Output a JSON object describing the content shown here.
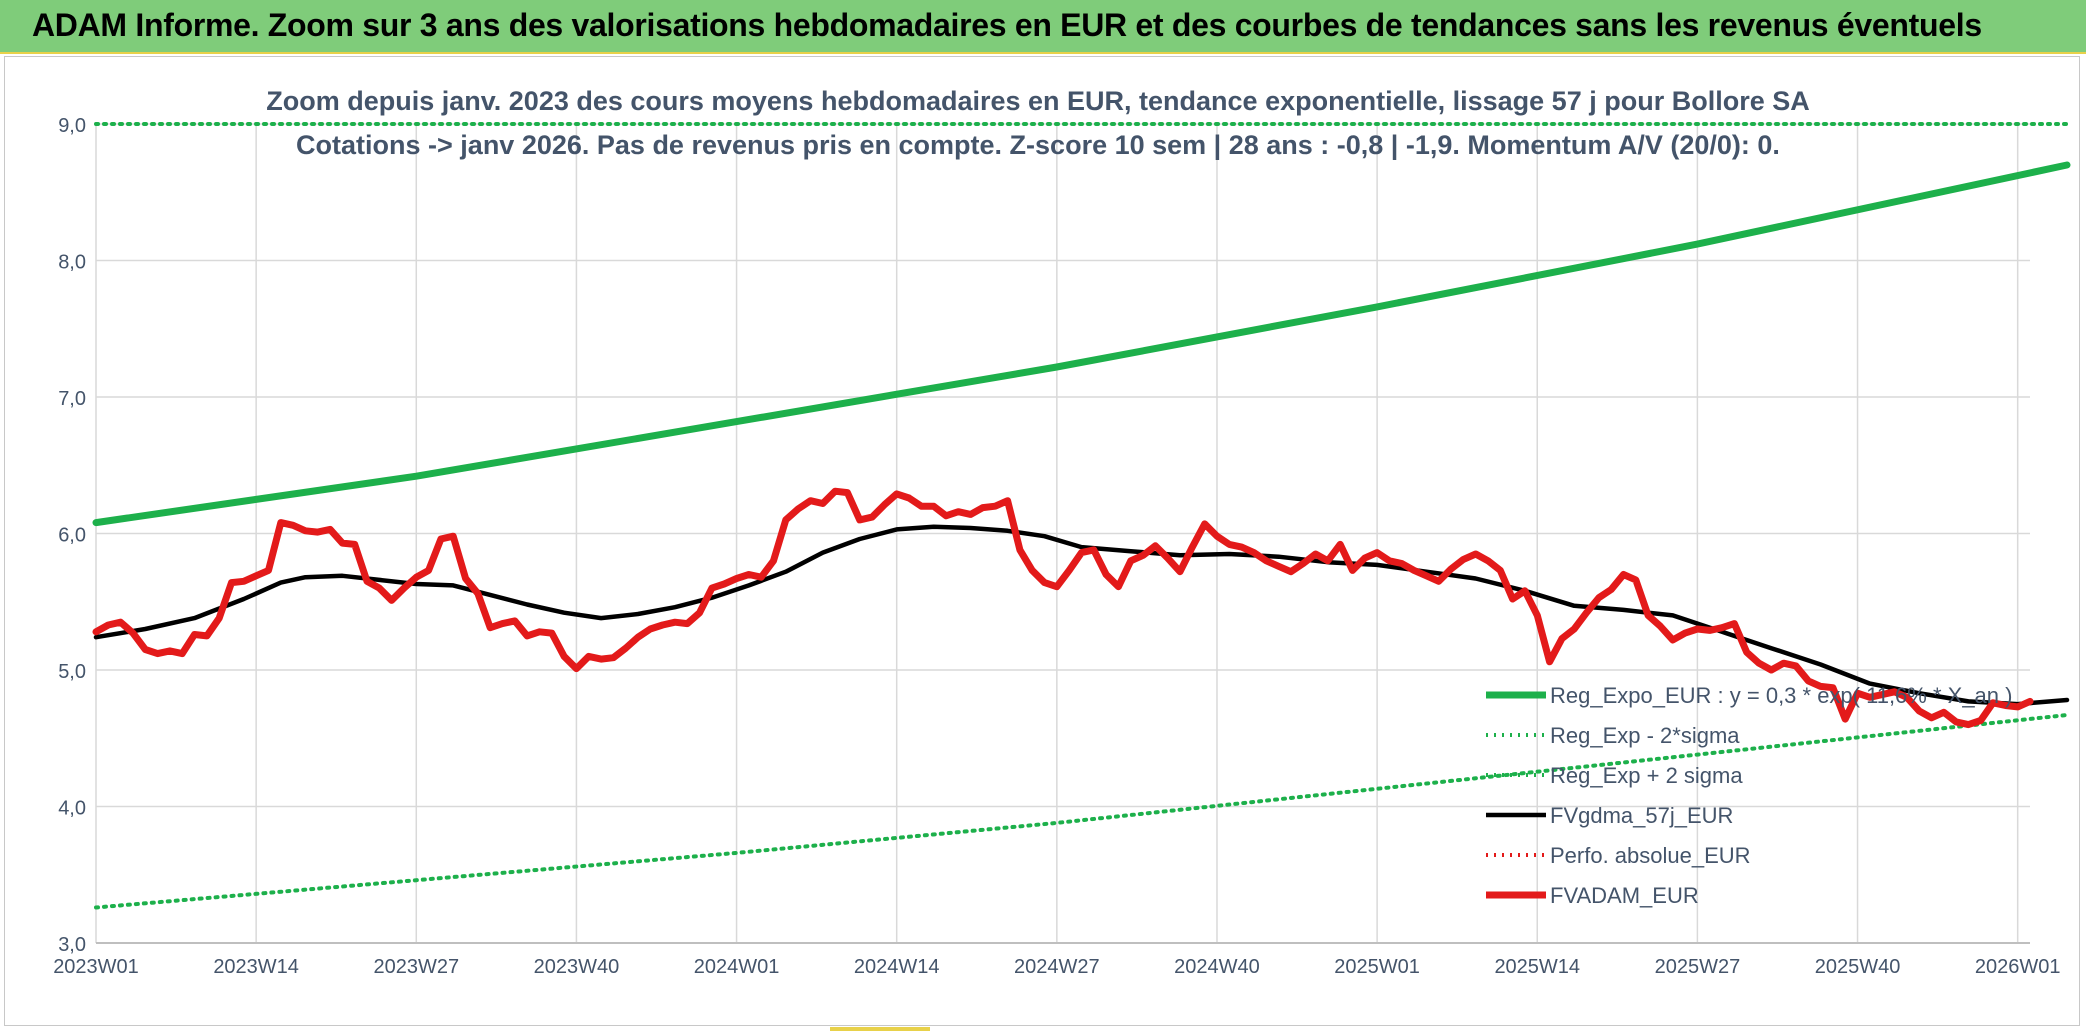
{
  "banner": {
    "title": "ADAM Informe. Zoom sur 3 ans des valorisations hebdomadaires en EUR et des courbes de tendances sans les revenus éventuels"
  },
  "colors": {
    "banner_bg": "#7fcc7a",
    "trend": "#1db04b",
    "gdma": "#000000",
    "fvadam": "#e31a1a",
    "perfo": "#e31a1a",
    "grid": "#d9d9d9",
    "text": "#44546a"
  },
  "chart_data": {
    "type": "line",
    "title": "Zoom depuis janv. 2023 des cours moyens hebdomadaires en EUR, tendance exponentielle, lissage 57 j pour Bollore SA",
    "subtitle": "Cotations -> janv 2026. Pas de revenus pris en compte. Z-score 10 sem | 28 ans : -0,8 | -1,9. Momentum A/V (20/0): 0.",
    "xlabel": "",
    "ylabel": "",
    "ylim": [
      3.0,
      9.0
    ],
    "yticks": [
      "3,0",
      "4,0",
      "5,0",
      "6,0",
      "7,0",
      "8,0",
      "9,0"
    ],
    "xlim": [
      0,
      157
    ],
    "xticks": [
      {
        "i": 0,
        "label": "2023W01"
      },
      {
        "i": 13,
        "label": "2023W14"
      },
      {
        "i": 26,
        "label": "2023W27"
      },
      {
        "i": 39,
        "label": "2023W40"
      },
      {
        "i": 52,
        "label": "2024W01"
      },
      {
        "i": 65,
        "label": "2024W14"
      },
      {
        "i": 78,
        "label": "2024W27"
      },
      {
        "i": 91,
        "label": "2024W40"
      },
      {
        "i": 104,
        "label": "2025W01"
      },
      {
        "i": 117,
        "label": "2025W14"
      },
      {
        "i": 130,
        "label": "2025W27"
      },
      {
        "i": 143,
        "label": "2025W40"
      },
      {
        "i": 156,
        "label": "2026W01"
      }
    ],
    "grid": true,
    "legend_position": "bottom-right",
    "series": [
      {
        "name": "Reg_Expo_EUR : y = 0,3 * exp( 11,6% * X_an )",
        "style": "solid-thick",
        "color": "#1db04b",
        "points": [
          [
            0,
            6.08
          ],
          [
            26,
            6.42
          ],
          [
            52,
            6.82
          ],
          [
            78,
            7.22
          ],
          [
            104,
            7.66
          ],
          [
            130,
            8.12
          ],
          [
            160,
            8.7
          ]
        ]
      },
      {
        "name": "Reg_Exp - 2*sigma",
        "style": "dotted",
        "color": "#1db04b",
        "points": [
          [
            0,
            3.26
          ],
          [
            26,
            3.46
          ],
          [
            52,
            3.66
          ],
          [
            78,
            3.88
          ],
          [
            104,
            4.13
          ],
          [
            130,
            4.38
          ],
          [
            160,
            4.67
          ]
        ]
      },
      {
        "name": "Reg_Exp + 2 sigma",
        "style": "dotted",
        "color": "#1db04b",
        "points": [
          [
            0,
            9.0
          ],
          [
            160,
            9.0
          ]
        ]
      },
      {
        "name": "FVgdma_57j_EUR",
        "style": "solid",
        "color": "#000000",
        "points": [
          [
            0,
            5.24
          ],
          [
            4,
            5.3
          ],
          [
            8,
            5.38
          ],
          [
            12,
            5.52
          ],
          [
            15,
            5.64
          ],
          [
            17,
            5.68
          ],
          [
            20,
            5.69
          ],
          [
            23,
            5.66
          ],
          [
            26,
            5.63
          ],
          [
            29,
            5.62
          ],
          [
            32,
            5.55
          ],
          [
            35,
            5.48
          ],
          [
            38,
            5.42
          ],
          [
            41,
            5.38
          ],
          [
            44,
            5.41
          ],
          [
            47,
            5.46
          ],
          [
            50,
            5.53
          ],
          [
            53,
            5.62
          ],
          [
            56,
            5.72
          ],
          [
            59,
            5.86
          ],
          [
            62,
            5.96
          ],
          [
            65,
            6.03
          ],
          [
            68,
            6.05
          ],
          [
            71,
            6.04
          ],
          [
            74,
            6.02
          ],
          [
            77,
            5.98
          ],
          [
            80,
            5.9
          ],
          [
            84,
            5.87
          ],
          [
            88,
            5.84
          ],
          [
            92,
            5.85
          ],
          [
            96,
            5.83
          ],
          [
            100,
            5.79
          ],
          [
            104,
            5.77
          ],
          [
            108,
            5.72
          ],
          [
            112,
            5.67
          ],
          [
            116,
            5.58
          ],
          [
            120,
            5.47
          ],
          [
            124,
            5.44
          ],
          [
            128,
            5.4
          ],
          [
            132,
            5.28
          ],
          [
            136,
            5.16
          ],
          [
            140,
            5.04
          ],
          [
            144,
            4.9
          ],
          [
            148,
            4.83
          ],
          [
            152,
            4.77
          ],
          [
            156,
            4.75
          ],
          [
            160,
            4.78
          ]
        ]
      },
      {
        "name": "Perfo. absolue_EUR",
        "style": "dotted",
        "color": "#e31a1a",
        "points": []
      },
      {
        "name": "FVADAM_EUR",
        "style": "solid-thick",
        "color": "#e31a1a",
        "points": [
          [
            0,
            5.28
          ],
          [
            1,
            5.33
          ],
          [
            2,
            5.35
          ],
          [
            3,
            5.27
          ],
          [
            4,
            5.15
          ],
          [
            5,
            5.12
          ],
          [
            6,
            5.14
          ],
          [
            7,
            5.12
          ],
          [
            8,
            5.26
          ],
          [
            9,
            5.25
          ],
          [
            10,
            5.38
          ],
          [
            11,
            5.64
          ],
          [
            12,
            5.65
          ],
          [
            13,
            5.69
          ],
          [
            14,
            5.73
          ],
          [
            15,
            6.08
          ],
          [
            16,
            6.06
          ],
          [
            17,
            6.02
          ],
          [
            18,
            6.01
          ],
          [
            19,
            6.03
          ],
          [
            20,
            5.93
          ],
          [
            21,
            5.92
          ],
          [
            22,
            5.65
          ],
          [
            23,
            5.6
          ],
          [
            24,
            5.51
          ],
          [
            25,
            5.6
          ],
          [
            26,
            5.68
          ],
          [
            27,
            5.73
          ],
          [
            28,
            5.96
          ],
          [
            29,
            5.98
          ],
          [
            30,
            5.67
          ],
          [
            31,
            5.56
          ],
          [
            32,
            5.31
          ],
          [
            33,
            5.34
          ],
          [
            34,
            5.36
          ],
          [
            35,
            5.25
          ],
          [
            36,
            5.28
          ],
          [
            37,
            5.27
          ],
          [
            38,
            5.1
          ],
          [
            39,
            5.01
          ],
          [
            40,
            5.1
          ],
          [
            41,
            5.08
          ],
          [
            42,
            5.09
          ],
          [
            43,
            5.16
          ],
          [
            44,
            5.24
          ],
          [
            45,
            5.3
          ],
          [
            46,
            5.33
          ],
          [
            47,
            5.35
          ],
          [
            48,
            5.34
          ],
          [
            49,
            5.42
          ],
          [
            50,
            5.6
          ],
          [
            51,
            5.63
          ],
          [
            52,
            5.67
          ],
          [
            53,
            5.7
          ],
          [
            54,
            5.68
          ],
          [
            55,
            5.8
          ],
          [
            56,
            6.1
          ],
          [
            57,
            6.18
          ],
          [
            58,
            6.24
          ],
          [
            59,
            6.22
          ],
          [
            60,
            6.31
          ],
          [
            61,
            6.3
          ],
          [
            62,
            6.1
          ],
          [
            63,
            6.12
          ],
          [
            64,
            6.21
          ],
          [
            65,
            6.29
          ],
          [
            66,
            6.26
          ],
          [
            67,
            6.2
          ],
          [
            68,
            6.2
          ],
          [
            69,
            6.13
          ],
          [
            70,
            6.16
          ],
          [
            71,
            6.14
          ],
          [
            72,
            6.19
          ],
          [
            73,
            6.2
          ],
          [
            74,
            6.24
          ],
          [
            75,
            5.88
          ],
          [
            76,
            5.73
          ],
          [
            77,
            5.64
          ],
          [
            78,
            5.61
          ],
          [
            79,
            5.73
          ],
          [
            80,
            5.86
          ],
          [
            81,
            5.88
          ],
          [
            82,
            5.7
          ],
          [
            83,
            5.61
          ],
          [
            84,
            5.8
          ],
          [
            85,
            5.84
          ],
          [
            86,
            5.91
          ],
          [
            87,
            5.82
          ],
          [
            88,
            5.72
          ],
          [
            89,
            5.9
          ],
          [
            90,
            6.07
          ],
          [
            91,
            5.98
          ],
          [
            92,
            5.92
          ],
          [
            93,
            5.9
          ],
          [
            94,
            5.86
          ],
          [
            95,
            5.8
          ],
          [
            96,
            5.76
          ],
          [
            97,
            5.72
          ],
          [
            98,
            5.78
          ],
          [
            99,
            5.85
          ],
          [
            100,
            5.8
          ],
          [
            101,
            5.92
          ],
          [
            102,
            5.73
          ],
          [
            103,
            5.82
          ],
          [
            104,
            5.86
          ],
          [
            105,
            5.8
          ],
          [
            106,
            5.78
          ],
          [
            107,
            5.73
          ],
          [
            108,
            5.69
          ],
          [
            109,
            5.65
          ],
          [
            110,
            5.74
          ],
          [
            111,
            5.81
          ],
          [
            112,
            5.85
          ],
          [
            113,
            5.8
          ],
          [
            114,
            5.73
          ],
          [
            115,
            5.52
          ],
          [
            116,
            5.58
          ],
          [
            117,
            5.4
          ],
          [
            118,
            5.06
          ],
          [
            119,
            5.23
          ],
          [
            120,
            5.3
          ],
          [
            121,
            5.42
          ],
          [
            122,
            5.53
          ],
          [
            123,
            5.59
          ],
          [
            124,
            5.7
          ],
          [
            125,
            5.66
          ],
          [
            126,
            5.4
          ],
          [
            127,
            5.32
          ],
          [
            128,
            5.22
          ],
          [
            129,
            5.27
          ],
          [
            130,
            5.3
          ],
          [
            131,
            5.29
          ],
          [
            132,
            5.31
          ],
          [
            133,
            5.34
          ],
          [
            134,
            5.13
          ],
          [
            135,
            5.05
          ],
          [
            136,
            5.0
          ],
          [
            137,
            5.05
          ],
          [
            138,
            5.03
          ],
          [
            139,
            4.92
          ],
          [
            140,
            4.88
          ],
          [
            141,
            4.87
          ],
          [
            142,
            4.64
          ],
          [
            143,
            4.83
          ],
          [
            144,
            4.8
          ],
          [
            145,
            4.82
          ],
          [
            146,
            4.84
          ],
          [
            147,
            4.8
          ],
          [
            148,
            4.7
          ],
          [
            149,
            4.65
          ],
          [
            150,
            4.69
          ],
          [
            151,
            4.62
          ],
          [
            152,
            4.6
          ],
          [
            153,
            4.63
          ],
          [
            154,
            4.76
          ],
          [
            155,
            4.74
          ],
          [
            156,
            4.73
          ],
          [
            157,
            4.77
          ]
        ]
      }
    ]
  }
}
